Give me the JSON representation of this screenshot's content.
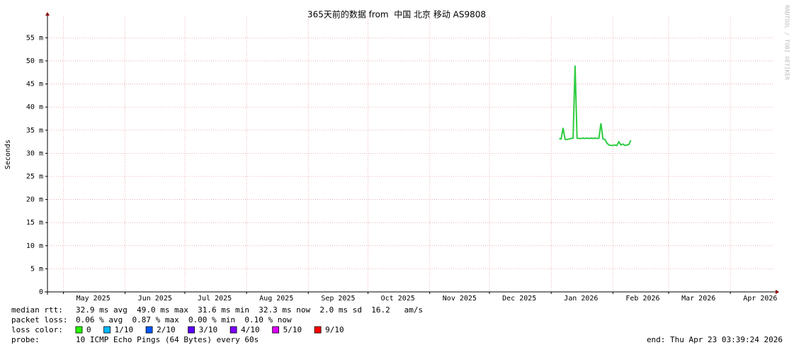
{
  "chart_data": {
    "type": "line",
    "title": "365天前的数据 from  中国 北京 移动 AS9808",
    "y_label": "Seconds",
    "watermark": "RRDTOOL / TOBI OETIKER",
    "color": "#2ecc40",
    "grid": true,
    "xlim": [
      0,
      365
    ],
    "xticks": [
      {
        "value": 8,
        "label": "May 2025"
      },
      {
        "value": 39,
        "label": "Jun 2025"
      },
      {
        "value": 69,
        "label": "Jul 2025"
      },
      {
        "value": 100,
        "label": "Aug 2025"
      },
      {
        "value": 131,
        "label": "Sep 2025"
      },
      {
        "value": 161,
        "label": "Oct 2025"
      },
      {
        "value": 192,
        "label": "Nov 2025"
      },
      {
        "value": 222,
        "label": "Dec 2025"
      },
      {
        "value": 253,
        "label": "Jan 2026"
      },
      {
        "value": 284,
        "label": "Feb 2026"
      },
      {
        "value": 312,
        "label": "Mar 2026"
      },
      {
        "value": 343,
        "label": "Apr 2026"
      }
    ],
    "ylim": [
      0,
      0.0595
    ],
    "yticks": [
      0,
      {
        "value": 0.005,
        "label": "5 m"
      },
      {
        "value": 0.01,
        "label": "10 m"
      },
      {
        "value": 0.015,
        "label": "15 m"
      },
      {
        "value": 0.02,
        "label": "20 m"
      },
      {
        "value": 0.025,
        "label": "25 m"
      },
      {
        "value": 0.03,
        "label": "30 m"
      },
      {
        "value": 0.035,
        "label": "35 m"
      },
      {
        "value": 0.04,
        "label": "40 m"
      },
      {
        "value": 0.045,
        "label": "45 m"
      },
      {
        "value": 0.05,
        "label": "50 m"
      },
      {
        "value": 0.055,
        "label": "55 m"
      }
    ],
    "x": [
      257,
      258,
      259,
      260,
      261,
      262,
      263,
      264,
      265,
      266,
      267,
      268,
      269,
      270,
      271,
      272,
      273,
      274,
      275,
      276,
      277,
      278,
      279,
      280,
      281,
      282,
      283,
      284,
      285,
      286,
      287,
      288,
      289,
      290,
      291,
      292,
      293
    ],
    "values": [
      0.0332,
      0.0331,
      0.0355,
      0.033,
      0.033,
      0.0331,
      0.0332,
      0.0333,
      0.049,
      0.0333,
      0.0332,
      0.0332,
      0.0333,
      0.0332,
      0.0333,
      0.0332,
      0.0333,
      0.0332,
      0.0333,
      0.0332,
      0.0333,
      0.0365,
      0.0331,
      0.033,
      0.0322,
      0.0318,
      0.0317,
      0.0317,
      0.0318,
      0.0317,
      0.0325,
      0.0318,
      0.032,
      0.0317,
      0.0318,
      0.0319,
      0.0328
    ]
  },
  "stats": {
    "median_rtt": {
      "label": "median rtt:",
      "text": "32.9 ms avg  49.0 ms max  31.6 ms min  32.3 ms now  2.0 ms sd  16.2   am/s"
    },
    "packet_loss": {
      "label": "packet loss:",
      "text": "0.06 % avg  0.87 % max  0.00 % min  0.10 % now"
    },
    "loss_color": {
      "label": "loss color:",
      "items": [
        {
          "color": "#26ff00",
          "label": "0"
        },
        {
          "color": "#00b8ff",
          "label": "1/10"
        },
        {
          "color": "#0059ff",
          "label": "2/10"
        },
        {
          "color": "#5e00ff",
          "label": "3/10"
        },
        {
          "color": "#7e00ff",
          "label": "4/10"
        },
        {
          "color": "#dd00ff",
          "label": "5/10"
        },
        {
          "color": "#ff0000",
          "label": "9/10"
        }
      ]
    },
    "probe": {
      "label": "probe:",
      "text": "10 ICMP Echo Pings (64 Bytes) every 60s"
    },
    "end": "end: Thu Apr 23 03:39:24 2026"
  }
}
